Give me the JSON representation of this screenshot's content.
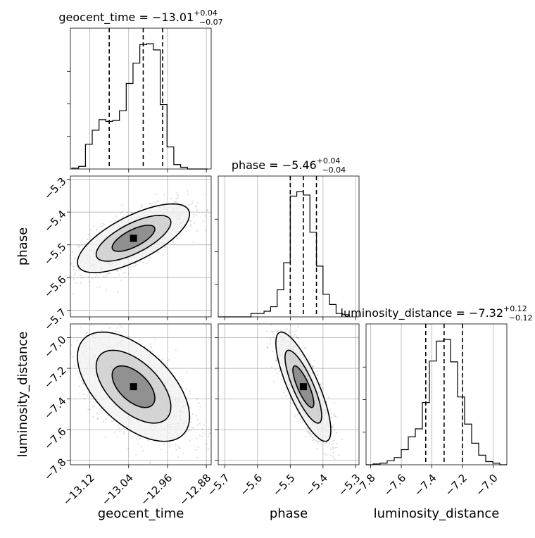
{
  "chart_data": {
    "type": "corner",
    "parameters": [
      "geocent_time",
      "phase",
      "luminosity_distance"
    ],
    "grid": true,
    "titles": {
      "geocent_time": {
        "lead": "geocent_time = −13.01",
        "sup": "+0.04",
        "sub": "−0.07"
      },
      "phase": {
        "lead": "phase = −5.46",
        "sup": "+0.04",
        "sub": "−0.04"
      },
      "luminosity_distance": {
        "lead": "luminosity_distance = −7.32",
        "sup": "+0.12",
        "sub": "−0.12"
      }
    },
    "axis_labels": {
      "geocent_time": "geocent_time",
      "phase": "phase",
      "luminosity_distance": "luminosity_distance"
    },
    "axes": {
      "geocent_time": {
        "range": [
          -13.16,
          -12.87
        ],
        "ticks": [
          -13.12,
          -13.04,
          -12.96,
          -12.88
        ],
        "tick_labels": [
          "−13.12",
          "−13.04",
          "−12.96",
          "−12.88"
        ]
      },
      "phase": {
        "range": [
          -5.72,
          -5.29
        ],
        "ticks": [
          -5.7,
          -5.6,
          -5.5,
          -5.4,
          -5.3
        ],
        "tick_labels": [
          "−5.7",
          "−5.6",
          "−5.5",
          "−5.4",
          "−5.3"
        ]
      },
      "luminosity_distance": {
        "range": [
          -7.83,
          -6.91
        ],
        "ticks": [
          -7.8,
          -7.6,
          -7.4,
          -7.2,
          -7.0
        ],
        "tick_labels": [
          "−7.8",
          "−7.6",
          "−7.4",
          "−7.2",
          "−7.0"
        ]
      }
    },
    "histograms": {
      "geocent_time": {
        "edges": [
          -13.157,
          -13.143,
          -13.129,
          -13.115,
          -13.101,
          -13.087,
          -13.073,
          -13.059,
          -13.045,
          -13.031,
          -13.017,
          -13.003,
          -12.989,
          -12.975,
          -12.961,
          -12.947,
          -12.933,
          -12.919,
          -12.905,
          -12.891,
          -12.877
        ],
        "counts": [
          1,
          3,
          28,
          44,
          56,
          54,
          55,
          66,
          97,
          120,
          141,
          142,
          135,
          73,
          25,
          5,
          2,
          0,
          0,
          0
        ]
      },
      "phase": {
        "edges": [
          -5.72,
          -5.7,
          -5.68,
          -5.66,
          -5.64,
          -5.62,
          -5.6,
          -5.58,
          -5.56,
          -5.54,
          -5.52,
          -5.5,
          -5.48,
          -5.46,
          -5.44,
          -5.42,
          -5.4,
          -5.38,
          -5.36,
          -5.34,
          -5.32
        ],
        "counts": [
          0,
          0,
          0,
          0,
          0,
          3,
          3,
          5,
          9,
          24,
          48,
          107,
          111,
          108,
          75,
          45,
          20,
          11,
          3,
          2
        ]
      },
      "luminosity_distance": {
        "edges": [
          -7.83,
          -7.784,
          -7.738,
          -7.692,
          -7.646,
          -7.6,
          -7.554,
          -7.508,
          -7.462,
          -7.416,
          -7.37,
          -7.324,
          -7.278,
          -7.232,
          -7.186,
          -7.14,
          -7.094,
          -7.048,
          -7.002,
          -6.956,
          -6.91
        ],
        "counts": [
          0,
          1,
          2,
          5,
          9,
          19,
          35,
          45,
          78,
          130,
          155,
          157,
          129,
          85,
          51,
          27,
          12,
          4,
          2,
          0
        ]
      }
    },
    "quantiles": {
      "geocent_time": [
        -13.08,
        -13.01,
        -12.97
      ],
      "phase": [
        -5.5,
        -5.46,
        -5.42
      ],
      "luminosity_distance": [
        -7.44,
        -7.32,
        -7.2
      ]
    },
    "pairs": [
      {
        "x": "geocent_time",
        "y": "phase",
        "mean": [
          -13.03,
          -5.48
        ],
        "std": [
          0.055,
          0.05
        ],
        "corr": 0.7
      },
      {
        "x": "geocent_time",
        "y": "luminosity_distance",
        "mean": [
          -13.03,
          -7.32
        ],
        "std": [
          0.055,
          0.17
        ],
        "corr": -0.55
      },
      {
        "x": "phase",
        "y": "luminosity_distance",
        "mean": [
          -5.46,
          -7.32
        ],
        "std": [
          0.04,
          0.17
        ],
        "corr": -0.8
      }
    ]
  }
}
